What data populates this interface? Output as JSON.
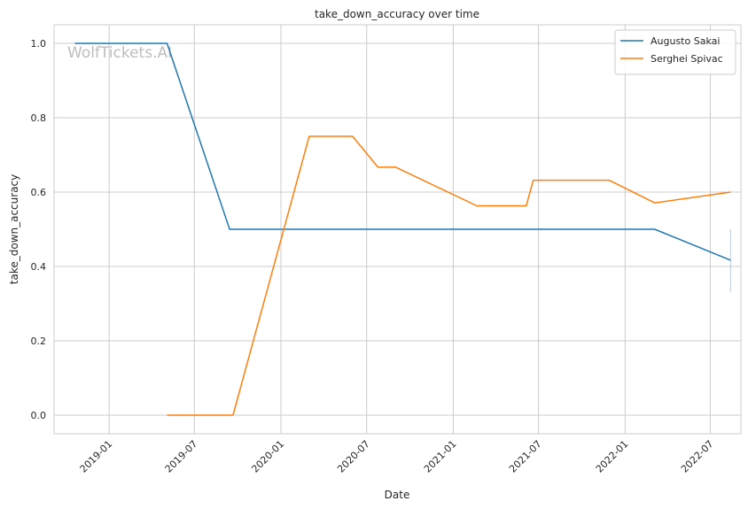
{
  "watermark": "WolfTickets.AI",
  "chart_data": {
    "type": "line",
    "title": "take_down_accuracy over time",
    "xlabel": "Date",
    "ylabel": "take_down_accuracy",
    "x_ticks": [
      "2019-01",
      "2019-07",
      "2020-01",
      "2020-07",
      "2021-01",
      "2021-07",
      "2022-01",
      "2022-07"
    ],
    "y_ticks": [
      "0.0",
      "0.2",
      "0.4",
      "0.6",
      "0.8",
      "1.0"
    ],
    "xlim": [
      "2018-09-06",
      "2022-09-04"
    ],
    "ylim": [
      -0.05,
      1.05
    ],
    "grid": true,
    "legend_position": "top-right",
    "colors": {
      "Augusto Sakai": "#1f77b4",
      "Serghei Spivac": "#ff7f0e"
    },
    "series": [
      {
        "name": "Augusto Sakai",
        "x": [
          "2018-10-20",
          "2019-05-04",
          "2019-09-14",
          "2022-03-05",
          "2022-08-13"
        ],
        "y": [
          1.0,
          1.0,
          0.5,
          0.5,
          0.417
        ]
      },
      {
        "name": "Serghei Spivac",
        "x": [
          "2019-05-04",
          "2019-09-21",
          "2020-03-01",
          "2020-06-01",
          "2020-07-25",
          "2020-09-01",
          "2021-02-20",
          "2021-06-05",
          "2021-06-20",
          "2021-11-28",
          "2022-03-05",
          "2022-08-13"
        ],
        "y": [
          0.0,
          0.0,
          0.75,
          0.75,
          0.667,
          0.667,
          0.563,
          0.563,
          0.632,
          0.632,
          0.571,
          0.6
        ]
      }
    ],
    "error_bar": {
      "x": "2022-08-13",
      "y_low": 0.33,
      "y_high": 0.5
    }
  }
}
